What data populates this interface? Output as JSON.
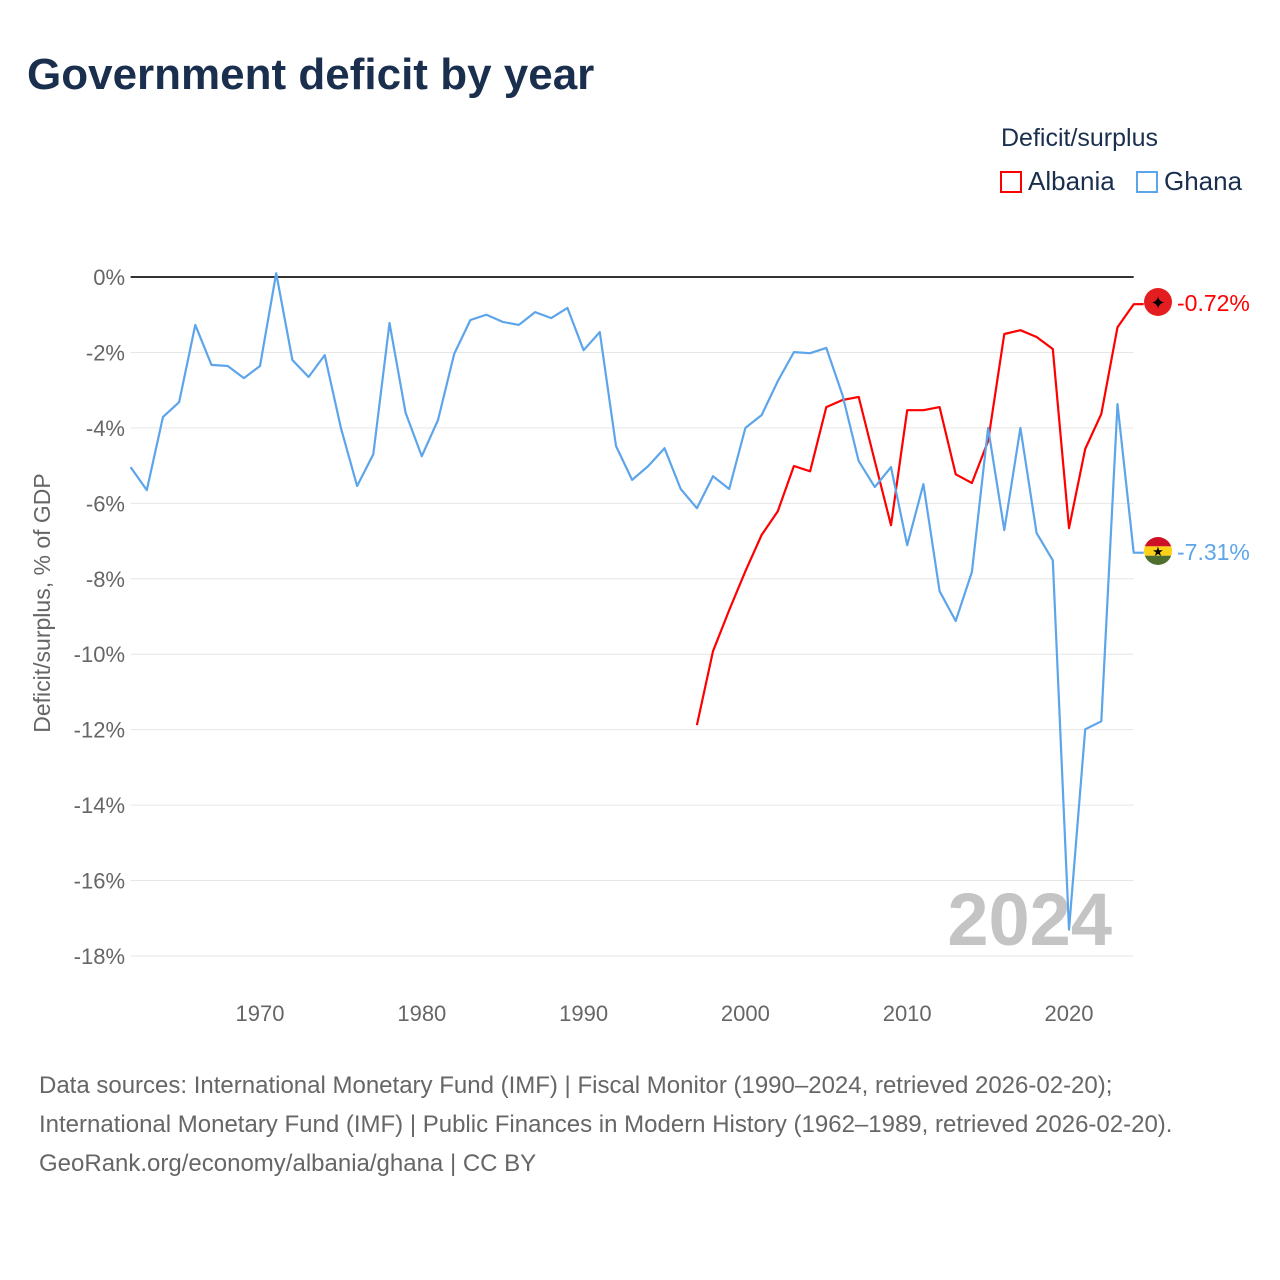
{
  "title": "Government deficit by year",
  "chart_data": {
    "type": "line",
    "title": "Government deficit by year",
    "xlabel": "",
    "ylabel": "Deficit/surplus, % of GDP",
    "xlim": [
      1962,
      2024
    ],
    "ylim": [
      -18,
      0
    ],
    "x_ticks": [
      1970,
      1980,
      1990,
      2000,
      2010,
      2020
    ],
    "y_ticks": [
      0,
      -2,
      -4,
      -6,
      -8,
      -10,
      -12,
      -14,
      -16,
      -18
    ],
    "y_tick_labels": [
      "0%",
      "-2%",
      "-4%",
      "-6%",
      "-8%",
      "-10%",
      "-12%",
      "-14%",
      "-16%",
      "-18%"
    ],
    "grid": true,
    "legend_title": "Deficit/surplus",
    "legend_position": "top-right",
    "year_watermark": "2024",
    "series": [
      {
        "name": "Albania",
        "color": "#ff0000",
        "end_label": "-0.72%",
        "flag": "albania-flag",
        "x": [
          1997,
          1998,
          1999,
          2000,
          2001,
          2002,
          2003,
          2004,
          2005,
          2006,
          2007,
          2008,
          2009,
          2010,
          2011,
          2012,
          2013,
          2014,
          2015,
          2016,
          2017,
          2018,
          2019,
          2020,
          2021,
          2022,
          2023,
          2024
        ],
        "values": [
          -11.88,
          -9.92,
          -8.83,
          -7.8,
          -6.84,
          -6.21,
          -5.01,
          -5.15,
          -3.45,
          -3.26,
          -3.18,
          -4.88,
          -6.58,
          -3.53,
          -3.53,
          -3.45,
          -5.23,
          -5.46,
          -4.35,
          -1.51,
          -1.41,
          -1.59,
          -1.91,
          -6.66,
          -4.56,
          -3.63,
          -1.33,
          -0.72
        ]
      },
      {
        "name": "Ghana",
        "color": "#5da5ea",
        "end_label": "-7.31%",
        "flag": "ghana-flag",
        "x": [
          1962,
          1963,
          1964,
          1965,
          1966,
          1967,
          1968,
          1969,
          1970,
          1971,
          1972,
          1973,
          1974,
          1975,
          1976,
          1977,
          1978,
          1979,
          1980,
          1981,
          1982,
          1983,
          1984,
          1985,
          1986,
          1987,
          1988,
          1989,
          1990,
          1991,
          1992,
          1993,
          1994,
          1995,
          1996,
          1997,
          1998,
          1999,
          2000,
          2001,
          2002,
          2003,
          2004,
          2005,
          2006,
          2007,
          2008,
          2009,
          2010,
          2011,
          2012,
          2013,
          2014,
          2015,
          2016,
          2017,
          2018,
          2019,
          2020,
          2021,
          2022,
          2023,
          2024
        ],
        "values": [
          -5.04,
          -5.65,
          -3.71,
          -3.32,
          -1.27,
          -2.33,
          -2.36,
          -2.68,
          -2.36,
          0.1,
          -2.2,
          -2.65,
          -2.07,
          -4.0,
          -5.54,
          -4.7,
          -1.22,
          -3.6,
          -4.75,
          -3.79,
          -2.04,
          -1.14,
          -1.0,
          -1.19,
          -1.27,
          -0.93,
          -1.09,
          -0.82,
          -1.94,
          -1.46,
          -4.48,
          -5.38,
          -5.01,
          -4.54,
          -5.62,
          -6.13,
          -5.28,
          -5.62,
          -4.0,
          -3.66,
          -2.76,
          -1.99,
          -2.02,
          -1.88,
          -3.13,
          -4.88,
          -5.57,
          -5.04,
          -7.11,
          -5.49,
          -8.33,
          -9.12,
          -7.82,
          -4.0,
          -6.71,
          -4.0,
          -6.79,
          -7.51,
          -17.3,
          -11.99,
          -11.78,
          -3.37,
          -7.31
        ]
      }
    ]
  },
  "sources": {
    "line1": "Data sources: International Monetary Fund (IMF) | Fiscal Monitor (1990–2024, retrieved 2026-02-20); International Monetary Fund (IMF) | Public Finances in Modern History (1962–1989, retrieved 2026-02-20).",
    "line2": "GeoRank.org/economy/albania/ghana | CC BY"
  }
}
